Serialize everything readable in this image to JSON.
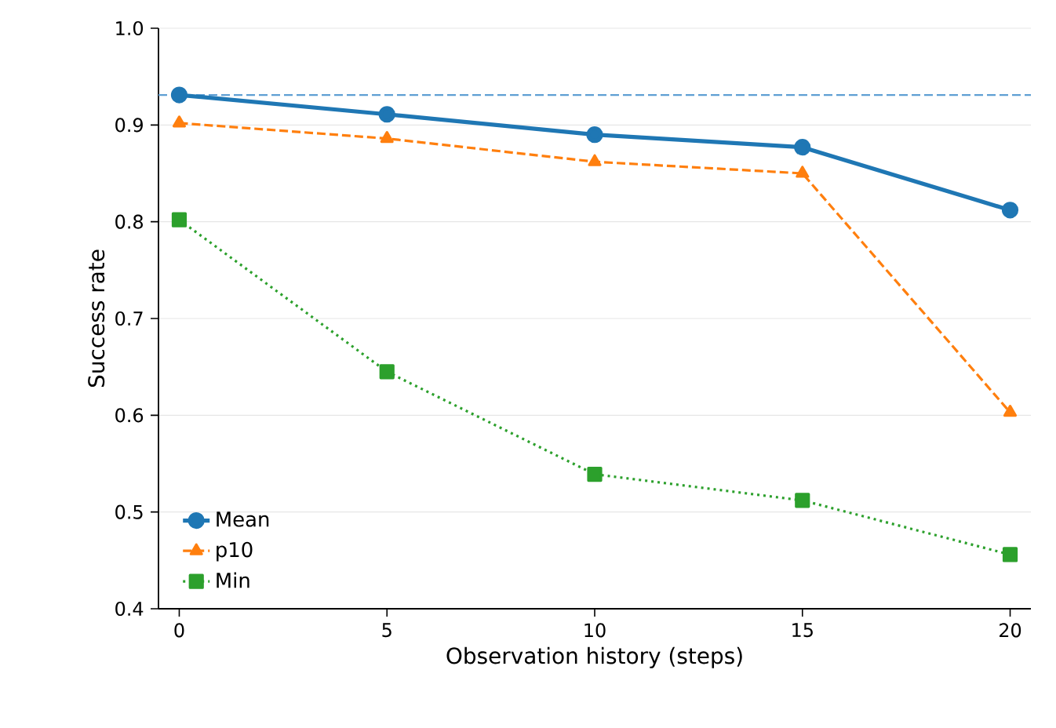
{
  "chart_data": {
    "type": "line",
    "xlabel": "Observation history (steps)",
    "ylabel": "Success rate",
    "x": [
      0,
      5,
      10,
      15,
      20
    ],
    "series": [
      {
        "name": "Mean",
        "color": "#1f77b4",
        "values": [
          0.931,
          0.911,
          0.89,
          0.877,
          0.812
        ],
        "marker": "circle",
        "line_style": "solid"
      },
      {
        "name": "p10",
        "color": "#ff7f0e",
        "values": [
          0.902,
          0.886,
          0.862,
          0.85,
          0.603
        ],
        "marker": "triangle",
        "line_style": "dashed"
      },
      {
        "name": "Min",
        "color": "#2ca02c",
        "values": [
          0.802,
          0.645,
          0.539,
          0.512,
          0.456
        ],
        "marker": "square",
        "line_style": "dotted"
      }
    ],
    "xlim": [
      -0.5,
      20.5
    ],
    "ylim": [
      0.4,
      1.0
    ],
    "xticks": [
      0,
      5,
      10,
      15,
      20
    ],
    "yticks": [
      0.4,
      0.5,
      0.6,
      0.7,
      0.8,
      0.9,
      {
        "value": 1,
        "label": "1.0"
      }
    ],
    "ref_lines": [
      {
        "axis": "y",
        "value": 0.931,
        "color": "#5f9fd4",
        "line_style": "dashed"
      }
    ],
    "grid": "y",
    "legend": "bottom left"
  }
}
